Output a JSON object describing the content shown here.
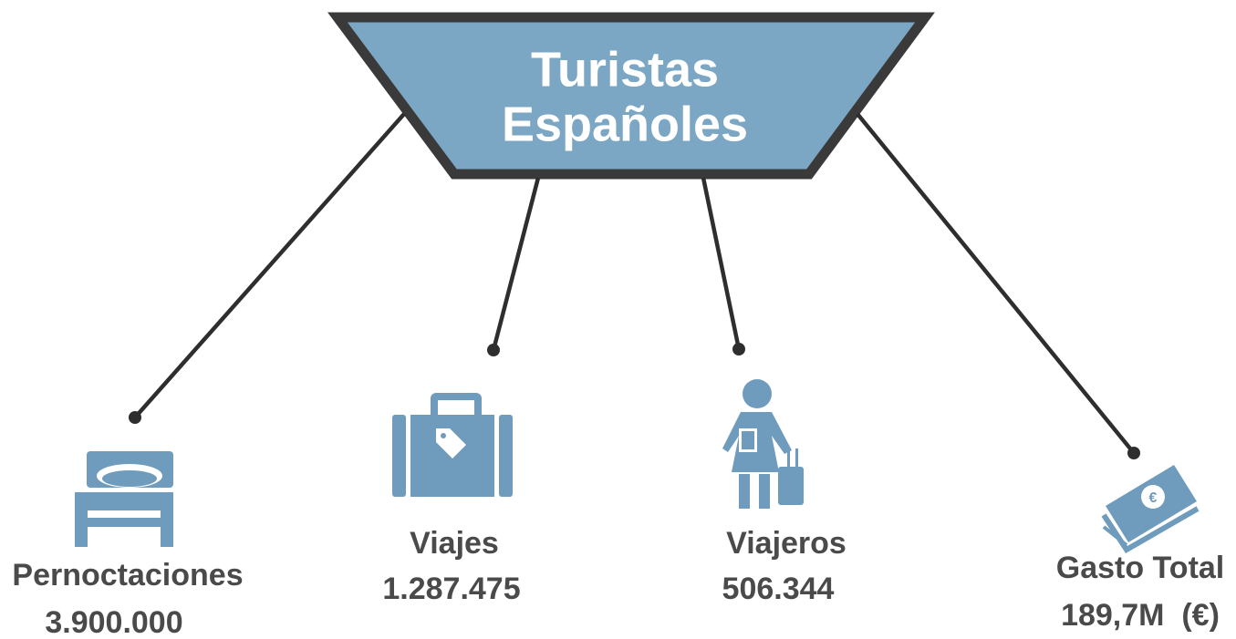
{
  "title": {
    "line1": "Turistas",
    "line2": "Españoles"
  },
  "items": [
    {
      "label": "Pernoctaciones",
      "value": "3.900.000"
    },
    {
      "label": "Viajes",
      "value": "1.287.475"
    },
    {
      "label": "Viajeros",
      "value": "506.344"
    },
    {
      "label": "Gasto Total",
      "value": "189,7M  (€)"
    }
  ]
}
